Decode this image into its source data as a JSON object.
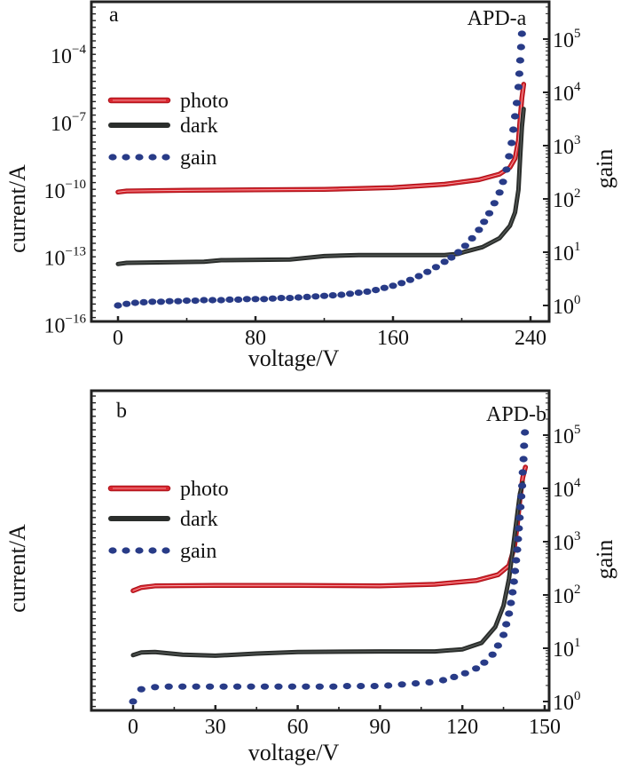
{
  "chart_data": [
    {
      "type": "line",
      "panel_label": "a",
      "title": "APD-a",
      "xlabel": "voltage/V",
      "ylabel": "current/A",
      "y2label": "gain",
      "xlim": [
        -12,
        244
      ],
      "xticks": [
        0,
        80,
        160,
        240
      ],
      "yscale": "log",
      "ylim_exp": [
        -16,
        -3.2
      ],
      "yticks": [
        {
          "base": "10",
          "exp": "−4",
          "value_exp": -4
        },
        {
          "base": "10",
          "exp": "−7",
          "value_exp": -7
        },
        {
          "base": "10",
          "exp": "−10",
          "value_exp": -10
        },
        {
          "base": "10",
          "exp": "−13",
          "value_exp": -13
        },
        {
          "base": "10",
          "exp": "−16",
          "value_exp": -16
        }
      ],
      "y2scale": "log",
      "y2lim_exp": [
        -0.3,
        5.7
      ],
      "y2ticks": [
        {
          "base": "10",
          "exp": "5",
          "value_exp": 5
        },
        {
          "base": "10",
          "exp": "4",
          "value_exp": 4
        },
        {
          "base": "10",
          "exp": "3",
          "value_exp": 3
        },
        {
          "base": "10",
          "exp": "2",
          "value_exp": 2
        },
        {
          "base": "10",
          "exp": "1",
          "value_exp": 1
        },
        {
          "base": "10",
          "exp": "0",
          "value_exp": 0
        }
      ],
      "legend": {
        "placement": "upper-left",
        "entries": [
          "photo",
          "dark",
          "gain"
        ]
      },
      "series": [
        {
          "name": "photo",
          "color": "#d9262e",
          "style": "double-line",
          "axis": "left",
          "points": [
            [
              0,
              -10.1
            ],
            [
              5,
              -10.05
            ],
            [
              40,
              -10.02
            ],
            [
              80,
              -10.0
            ],
            [
              120,
              -9.98
            ],
            [
              160,
              -9.9
            ],
            [
              190,
              -9.75
            ],
            [
              210,
              -9.55
            ],
            [
              222,
              -9.3
            ],
            [
              228,
              -9.0
            ],
            [
              231,
              -8.6
            ],
            [
              233,
              -7.8
            ],
            [
              234,
              -6.8
            ],
            [
              235,
              -5.9
            ],
            [
              236,
              -5.3
            ]
          ]
        },
        {
          "name": "dark",
          "color": "#2b2e2c",
          "style": "line",
          "axis": "left",
          "points": [
            [
              0,
              -13.3
            ],
            [
              5,
              -13.25
            ],
            [
              50,
              -13.2
            ],
            [
              60,
              -13.13
            ],
            [
              100,
              -13.1
            ],
            [
              120,
              -12.95
            ],
            [
              140,
              -12.9
            ],
            [
              190,
              -12.9
            ],
            [
              198,
              -12.85
            ],
            [
              202,
              -12.75
            ],
            [
              212,
              -12.55
            ],
            [
              222,
              -12.15
            ],
            [
              228,
              -11.6
            ],
            [
              231,
              -11.0
            ],
            [
              233,
              -10.0
            ],
            [
              234,
              -8.5
            ],
            [
              235,
              -7.2
            ],
            [
              236,
              -6.4
            ]
          ]
        },
        {
          "name": "gain",
          "color": "#283b87",
          "style": "dots",
          "axis": "right",
          "points": [
            [
              0,
              0.0
            ],
            [
              5,
              0.03
            ],
            [
              10,
              0.05
            ],
            [
              15,
              0.06
            ],
            [
              20,
              0.07
            ],
            [
              25,
              0.07
            ],
            [
              30,
              0.08
            ],
            [
              35,
              0.08
            ],
            [
              40,
              0.09
            ],
            [
              45,
              0.09
            ],
            [
              50,
              0.1
            ],
            [
              55,
              0.1
            ],
            [
              60,
              0.1
            ],
            [
              65,
              0.11
            ],
            [
              70,
              0.11
            ],
            [
              75,
              0.12
            ],
            [
              80,
              0.12
            ],
            [
              85,
              0.12
            ],
            [
              90,
              0.13
            ],
            [
              95,
              0.14
            ],
            [
              100,
              0.14
            ],
            [
              105,
              0.15
            ],
            [
              110,
              0.16
            ],
            [
              115,
              0.17
            ],
            [
              120,
              0.18
            ],
            [
              125,
              0.19
            ],
            [
              130,
              0.2
            ],
            [
              135,
              0.22
            ],
            [
              140,
              0.24
            ],
            [
              145,
              0.26
            ],
            [
              150,
              0.29
            ],
            [
              155,
              0.33
            ],
            [
              160,
              0.37
            ],
            [
              165,
              0.42
            ],
            [
              170,
              0.48
            ],
            [
              175,
              0.55
            ],
            [
              180,
              0.63
            ],
            [
              185,
              0.72
            ],
            [
              190,
              0.82
            ],
            [
              194,
              0.9
            ],
            [
              198,
              1.0
            ],
            [
              202,
              1.12
            ],
            [
              206,
              1.26
            ],
            [
              210,
              1.42
            ],
            [
              213,
              1.57
            ],
            [
              216,
              1.73
            ],
            [
              219,
              1.92
            ],
            [
              222,
              2.12
            ],
            [
              224,
              2.32
            ],
            [
              226,
              2.55
            ],
            [
              227.5,
              2.8
            ],
            [
              229,
              3.05
            ],
            [
              230,
              3.3
            ],
            [
              231,
              3.55
            ],
            [
              232,
              3.8
            ],
            [
              233,
              4.1
            ],
            [
              233.5,
              4.35
            ],
            [
              234,
              4.6
            ],
            [
              234.5,
              4.85
            ],
            [
              235,
              5.1
            ]
          ]
        }
      ]
    },
    {
      "type": "line",
      "panel_label": "b",
      "title": "APD-b",
      "xlabel": "voltage/V",
      "ylabel": "current/A",
      "y2label": "gain",
      "xlim": [
        -15,
        152
      ],
      "xticks": [
        0,
        30,
        60,
        90,
        120,
        150
      ],
      "yscale": "log",
      "yticks": [],
      "y2scale": "log",
      "y2lim_exp": [
        -0.15,
        5.85
      ],
      "y2ticks": [
        {
          "base": "10",
          "exp": "5",
          "value_exp": 5
        },
        {
          "base": "10",
          "exp": "4",
          "value_exp": 4
        },
        {
          "base": "10",
          "exp": "3",
          "value_exp": 3
        },
        {
          "base": "10",
          "exp": "2",
          "value_exp": 2
        },
        {
          "base": "10",
          "exp": "1",
          "value_exp": 1
        },
        {
          "base": "10",
          "exp": "0",
          "value_exp": 0
        }
      ],
      "legend": {
        "placement": "upper-left",
        "entries": [
          "photo",
          "dark",
          "gain"
        ]
      },
      "series": [
        {
          "name": "photo",
          "color": "#d9262e",
          "style": "double-line",
          "axis": "right-equivalent",
          "points": [
            [
              0,
              2.08
            ],
            [
              3,
              2.14
            ],
            [
              8,
              2.17
            ],
            [
              30,
              2.18
            ],
            [
              60,
              2.18
            ],
            [
              90,
              2.17
            ],
            [
              110,
              2.2
            ],
            [
              125,
              2.27
            ],
            [
              133,
              2.38
            ],
            [
              137,
              2.55
            ],
            [
              139,
              2.9
            ],
            [
              140,
              3.3
            ],
            [
              141,
              3.8
            ],
            [
              142,
              4.2
            ],
            [
              143,
              4.4
            ]
          ]
        },
        {
          "name": "dark",
          "color": "#2b2e2c",
          "style": "line",
          "axis": "right-equivalent",
          "points": [
            [
              0,
              0.87
            ],
            [
              3,
              0.92
            ],
            [
              8,
              0.93
            ],
            [
              18,
              0.88
            ],
            [
              30,
              0.86
            ],
            [
              45,
              0.9
            ],
            [
              60,
              0.93
            ],
            [
              90,
              0.94
            ],
            [
              110,
              0.94
            ],
            [
              120,
              0.98
            ],
            [
              127,
              1.1
            ],
            [
              132,
              1.4
            ],
            [
              135,
              1.8
            ],
            [
              137,
              2.3
            ],
            [
              138.5,
              2.9
            ],
            [
              140,
              3.5
            ],
            [
              141,
              3.9
            ],
            [
              142,
              4.1
            ]
          ]
        },
        {
          "name": "gain",
          "color": "#283b87",
          "style": "dots",
          "axis": "right",
          "points": [
            [
              0,
              0.0
            ],
            [
              3,
              0.23
            ],
            [
              8,
              0.27
            ],
            [
              13,
              0.28
            ],
            [
              18,
              0.28
            ],
            [
              23,
              0.28
            ],
            [
              28,
              0.28
            ],
            [
              33,
              0.28
            ],
            [
              38,
              0.28
            ],
            [
              43,
              0.28
            ],
            [
              48,
              0.28
            ],
            [
              53,
              0.28
            ],
            [
              58,
              0.28
            ],
            [
              63,
              0.28
            ],
            [
              68,
              0.28
            ],
            [
              73,
              0.28
            ],
            [
              78,
              0.29
            ],
            [
              83,
              0.29
            ],
            [
              88,
              0.29
            ],
            [
              93,
              0.3
            ],
            [
              98,
              0.32
            ],
            [
              103,
              0.34
            ],
            [
              108,
              0.36
            ],
            [
              113,
              0.4
            ],
            [
              117,
              0.46
            ],
            [
              121,
              0.53
            ],
            [
              125,
              0.62
            ],
            [
              128,
              0.73
            ],
            [
              131,
              0.88
            ],
            [
              133,
              1.05
            ],
            [
              135,
              1.25
            ],
            [
              136,
              1.45
            ],
            [
              137,
              1.65
            ],
            [
              137.7,
              1.85
            ],
            [
              138.3,
              2.05
            ],
            [
              138.8,
              2.25
            ],
            [
              139.2,
              2.45
            ],
            [
              139.6,
              2.65
            ],
            [
              140,
              2.85
            ],
            [
              140.3,
              3.05
            ],
            [
              140.6,
              3.25
            ],
            [
              140.9,
              3.45
            ],
            [
              141.2,
              3.65
            ],
            [
              141.5,
              3.85
            ],
            [
              141.8,
              4.05
            ],
            [
              142,
              4.3
            ],
            [
              142.3,
              4.55
            ],
            [
              142.5,
              4.8
            ],
            [
              142.8,
              5.05
            ]
          ]
        }
      ]
    }
  ]
}
